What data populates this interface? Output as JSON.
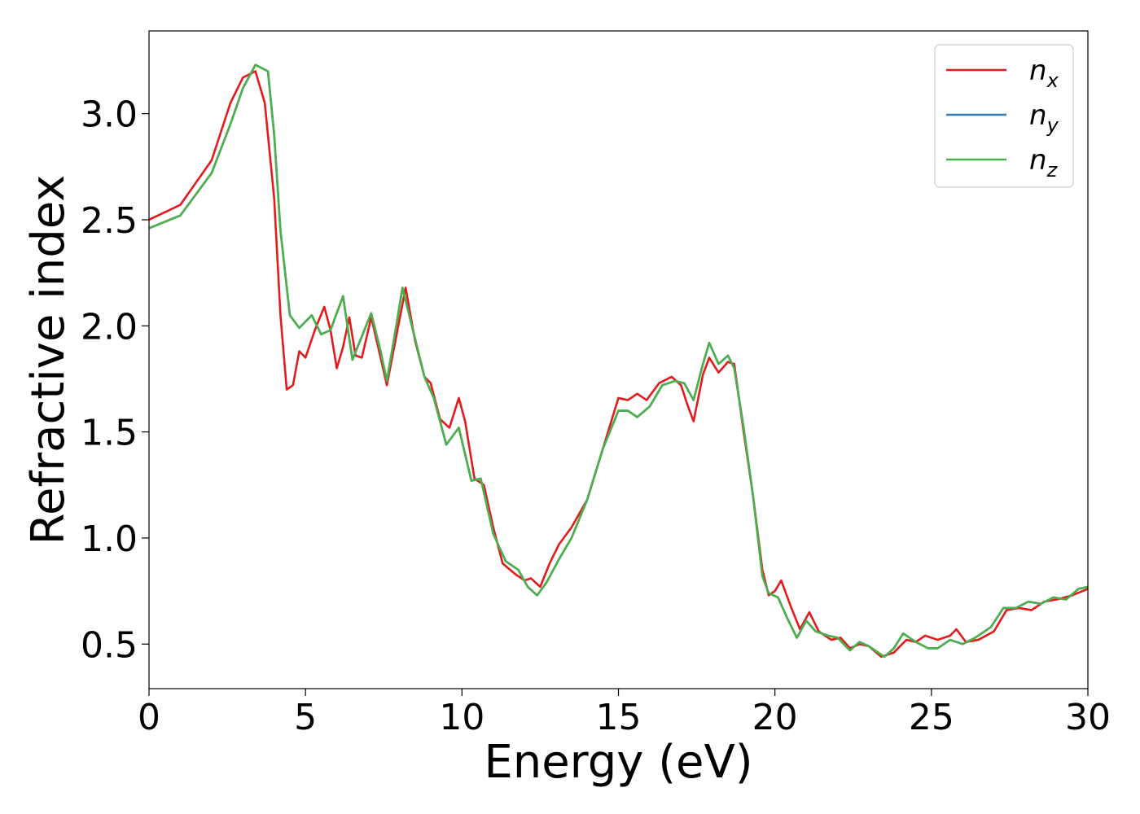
{
  "chart_data": {
    "type": "line",
    "title": "",
    "xlabel": "Energy (eV)",
    "ylabel": "Refractive index",
    "xlim": [
      0,
      30
    ],
    "ylim": [
      0.29,
      3.39
    ],
    "xticks": [
      0,
      5,
      10,
      15,
      20,
      25,
      30
    ],
    "xtick_labels": [
      "0",
      "5",
      "10",
      "15",
      "20",
      "25",
      "30"
    ],
    "yticks": [
      0.5,
      1.0,
      1.5,
      2.0,
      2.5,
      3.0
    ],
    "ytick_labels": [
      "0.5",
      "1.0",
      "1.5",
      "2.0",
      "2.5",
      "3.0"
    ],
    "grid": false,
    "legend_position": "top-right",
    "series": [
      {
        "name": "n_x",
        "label_main": "n",
        "label_sub": "x",
        "color": "#e41a1c",
        "points": [
          [
            0,
            2.5
          ],
          [
            1,
            2.57
          ],
          [
            2,
            2.78
          ],
          [
            2.6,
            3.05
          ],
          [
            3,
            3.17
          ],
          [
            3.4,
            3.2
          ],
          [
            3.7,
            3.05
          ],
          [
            4.0,
            2.6
          ],
          [
            4.2,
            2.05
          ],
          [
            4.4,
            1.7
          ],
          [
            4.6,
            1.72
          ],
          [
            4.8,
            1.88
          ],
          [
            5.0,
            1.85
          ],
          [
            5.3,
            1.98
          ],
          [
            5.6,
            2.09
          ],
          [
            5.8,
            1.98
          ],
          [
            6.0,
            1.8
          ],
          [
            6.2,
            1.9
          ],
          [
            6.4,
            2.04
          ],
          [
            6.6,
            1.86
          ],
          [
            6.8,
            1.85
          ],
          [
            7.1,
            2.04
          ],
          [
            7.4,
            1.85
          ],
          [
            7.6,
            1.72
          ],
          [
            7.9,
            1.95
          ],
          [
            8.2,
            2.18
          ],
          [
            8.5,
            1.93
          ],
          [
            8.8,
            1.76
          ],
          [
            9.0,
            1.73
          ],
          [
            9.3,
            1.56
          ],
          [
            9.6,
            1.52
          ],
          [
            9.9,
            1.66
          ],
          [
            10.1,
            1.55
          ],
          [
            10.4,
            1.28
          ],
          [
            10.7,
            1.25
          ],
          [
            11.0,
            1.05
          ],
          [
            11.3,
            0.88
          ],
          [
            11.7,
            0.83
          ],
          [
            12.0,
            0.8
          ],
          [
            12.2,
            0.81
          ],
          [
            12.5,
            0.77
          ],
          [
            12.8,
            0.88
          ],
          [
            13.1,
            0.97
          ],
          [
            13.5,
            1.05
          ],
          [
            14.0,
            1.18
          ],
          [
            14.5,
            1.42
          ],
          [
            15.0,
            1.66
          ],
          [
            15.3,
            1.65
          ],
          [
            15.6,
            1.68
          ],
          [
            15.9,
            1.65
          ],
          [
            16.3,
            1.73
          ],
          [
            16.7,
            1.76
          ],
          [
            17.0,
            1.72
          ],
          [
            17.2,
            1.63
          ],
          [
            17.4,
            1.55
          ],
          [
            17.7,
            1.77
          ],
          [
            17.9,
            1.85
          ],
          [
            18.2,
            1.78
          ],
          [
            18.5,
            1.83
          ],
          [
            18.7,
            1.82
          ],
          [
            19.0,
            1.5
          ],
          [
            19.3,
            1.2
          ],
          [
            19.6,
            0.85
          ],
          [
            19.8,
            0.73
          ],
          [
            20.0,
            0.75
          ],
          [
            20.2,
            0.8
          ],
          [
            20.5,
            0.68
          ],
          [
            20.8,
            0.57
          ],
          [
            21.1,
            0.65
          ],
          [
            21.4,
            0.56
          ],
          [
            21.8,
            0.52
          ],
          [
            22.1,
            0.53
          ],
          [
            22.4,
            0.48
          ],
          [
            22.7,
            0.5
          ],
          [
            23.0,
            0.49
          ],
          [
            23.4,
            0.44
          ],
          [
            23.8,
            0.46
          ],
          [
            24.2,
            0.52
          ],
          [
            24.5,
            0.51
          ],
          [
            24.8,
            0.54
          ],
          [
            25.2,
            0.52
          ],
          [
            25.6,
            0.54
          ],
          [
            25.8,
            0.57
          ],
          [
            26.1,
            0.51
          ],
          [
            26.5,
            0.52
          ],
          [
            27.0,
            0.56
          ],
          [
            27.4,
            0.66
          ],
          [
            27.8,
            0.67
          ],
          [
            28.2,
            0.66
          ],
          [
            28.6,
            0.7
          ],
          [
            29.0,
            0.71
          ],
          [
            29.5,
            0.73
          ],
          [
            30,
            0.76
          ]
        ]
      },
      {
        "name": "n_y",
        "label_main": "n",
        "label_sub": "y",
        "color": "#377eb8",
        "points": [
          [
            0,
            2.46
          ],
          [
            1,
            2.52
          ],
          [
            2,
            2.72
          ],
          [
            2.6,
            2.95
          ],
          [
            3,
            3.12
          ],
          [
            3.4,
            3.23
          ],
          [
            3.8,
            3.2
          ],
          [
            4.0,
            2.9
          ],
          [
            4.2,
            2.45
          ],
          [
            4.5,
            2.05
          ],
          [
            4.8,
            1.99
          ],
          [
            5.2,
            2.05
          ],
          [
            5.5,
            1.96
          ],
          [
            5.8,
            1.98
          ],
          [
            6.2,
            2.14
          ],
          [
            6.5,
            1.84
          ],
          [
            6.8,
            1.95
          ],
          [
            7.1,
            2.06
          ],
          [
            7.4,
            1.88
          ],
          [
            7.6,
            1.74
          ],
          [
            7.9,
            2.0
          ],
          [
            8.1,
            2.18
          ],
          [
            8.4,
            2.0
          ],
          [
            8.8,
            1.76
          ],
          [
            9.1,
            1.66
          ],
          [
            9.5,
            1.44
          ],
          [
            9.9,
            1.52
          ],
          [
            10.3,
            1.27
          ],
          [
            10.6,
            1.28
          ],
          [
            11.0,
            1.02
          ],
          [
            11.4,
            0.89
          ],
          [
            11.8,
            0.85
          ],
          [
            12.1,
            0.77
          ],
          [
            12.4,
            0.73
          ],
          [
            12.7,
            0.79
          ],
          [
            13.1,
            0.9
          ],
          [
            13.5,
            1.0
          ],
          [
            14.0,
            1.18
          ],
          [
            14.5,
            1.42
          ],
          [
            15.0,
            1.6
          ],
          [
            15.3,
            1.6
          ],
          [
            15.6,
            1.57
          ],
          [
            16.0,
            1.62
          ],
          [
            16.4,
            1.72
          ],
          [
            16.8,
            1.74
          ],
          [
            17.1,
            1.73
          ],
          [
            17.4,
            1.65
          ],
          [
            17.7,
            1.82
          ],
          [
            17.9,
            1.92
          ],
          [
            18.2,
            1.82
          ],
          [
            18.5,
            1.86
          ],
          [
            18.7,
            1.8
          ],
          [
            19.0,
            1.52
          ],
          [
            19.3,
            1.2
          ],
          [
            19.6,
            0.82
          ],
          [
            19.8,
            0.74
          ],
          [
            20.1,
            0.72
          ],
          [
            20.4,
            0.62
          ],
          [
            20.7,
            0.53
          ],
          [
            21.0,
            0.61
          ],
          [
            21.3,
            0.56
          ],
          [
            21.7,
            0.54
          ],
          [
            22.0,
            0.53
          ],
          [
            22.4,
            0.47
          ],
          [
            22.7,
            0.51
          ],
          [
            23.0,
            0.49
          ],
          [
            23.5,
            0.44
          ],
          [
            23.8,
            0.48
          ],
          [
            24.1,
            0.55
          ],
          [
            24.5,
            0.51
          ],
          [
            24.9,
            0.48
          ],
          [
            25.2,
            0.48
          ],
          [
            25.6,
            0.52
          ],
          [
            26.0,
            0.5
          ],
          [
            26.4,
            0.53
          ],
          [
            26.9,
            0.58
          ],
          [
            27.3,
            0.67
          ],
          [
            27.7,
            0.67
          ],
          [
            28.1,
            0.7
          ],
          [
            28.5,
            0.69
          ],
          [
            28.9,
            0.72
          ],
          [
            29.3,
            0.71
          ],
          [
            29.7,
            0.76
          ],
          [
            30,
            0.77
          ]
        ]
      },
      {
        "name": "n_z",
        "label_main": "n",
        "label_sub": "z",
        "color": "#4daf4a",
        "points": [
          [
            0,
            2.46
          ],
          [
            1,
            2.52
          ],
          [
            2,
            2.72
          ],
          [
            2.6,
            2.95
          ],
          [
            3,
            3.12
          ],
          [
            3.4,
            3.23
          ],
          [
            3.8,
            3.2
          ],
          [
            4.0,
            2.9
          ],
          [
            4.2,
            2.45
          ],
          [
            4.5,
            2.05
          ],
          [
            4.8,
            1.99
          ],
          [
            5.2,
            2.05
          ],
          [
            5.5,
            1.96
          ],
          [
            5.8,
            1.98
          ],
          [
            6.2,
            2.14
          ],
          [
            6.5,
            1.84
          ],
          [
            6.8,
            1.95
          ],
          [
            7.1,
            2.06
          ],
          [
            7.4,
            1.88
          ],
          [
            7.6,
            1.74
          ],
          [
            7.9,
            2.0
          ],
          [
            8.1,
            2.18
          ],
          [
            8.4,
            2.0
          ],
          [
            8.8,
            1.76
          ],
          [
            9.1,
            1.66
          ],
          [
            9.5,
            1.44
          ],
          [
            9.9,
            1.52
          ],
          [
            10.3,
            1.27
          ],
          [
            10.6,
            1.28
          ],
          [
            11.0,
            1.02
          ],
          [
            11.4,
            0.89
          ],
          [
            11.8,
            0.85
          ],
          [
            12.1,
            0.77
          ],
          [
            12.4,
            0.73
          ],
          [
            12.7,
            0.79
          ],
          [
            13.1,
            0.9
          ],
          [
            13.5,
            1.0
          ],
          [
            14.0,
            1.18
          ],
          [
            14.5,
            1.42
          ],
          [
            15.0,
            1.6
          ],
          [
            15.3,
            1.6
          ],
          [
            15.6,
            1.57
          ],
          [
            16.0,
            1.62
          ],
          [
            16.4,
            1.72
          ],
          [
            16.8,
            1.74
          ],
          [
            17.1,
            1.73
          ],
          [
            17.4,
            1.65
          ],
          [
            17.7,
            1.82
          ],
          [
            17.9,
            1.92
          ],
          [
            18.2,
            1.82
          ],
          [
            18.5,
            1.86
          ],
          [
            18.7,
            1.8
          ],
          [
            19.0,
            1.52
          ],
          [
            19.3,
            1.2
          ],
          [
            19.6,
            0.82
          ],
          [
            19.8,
            0.74
          ],
          [
            20.1,
            0.72
          ],
          [
            20.4,
            0.62
          ],
          [
            20.7,
            0.53
          ],
          [
            21.0,
            0.61
          ],
          [
            21.3,
            0.56
          ],
          [
            21.7,
            0.54
          ],
          [
            22.0,
            0.53
          ],
          [
            22.4,
            0.47
          ],
          [
            22.7,
            0.51
          ],
          [
            23.0,
            0.49
          ],
          [
            23.5,
            0.44
          ],
          [
            23.8,
            0.48
          ],
          [
            24.1,
            0.55
          ],
          [
            24.5,
            0.51
          ],
          [
            24.9,
            0.48
          ],
          [
            25.2,
            0.48
          ],
          [
            25.6,
            0.52
          ],
          [
            26.0,
            0.5
          ],
          [
            26.4,
            0.53
          ],
          [
            26.9,
            0.58
          ],
          [
            27.3,
            0.67
          ],
          [
            27.7,
            0.67
          ],
          [
            28.1,
            0.7
          ],
          [
            28.5,
            0.69
          ],
          [
            28.9,
            0.72
          ],
          [
            29.3,
            0.71
          ],
          [
            29.7,
            0.76
          ],
          [
            30,
            0.77
          ]
        ]
      }
    ]
  }
}
